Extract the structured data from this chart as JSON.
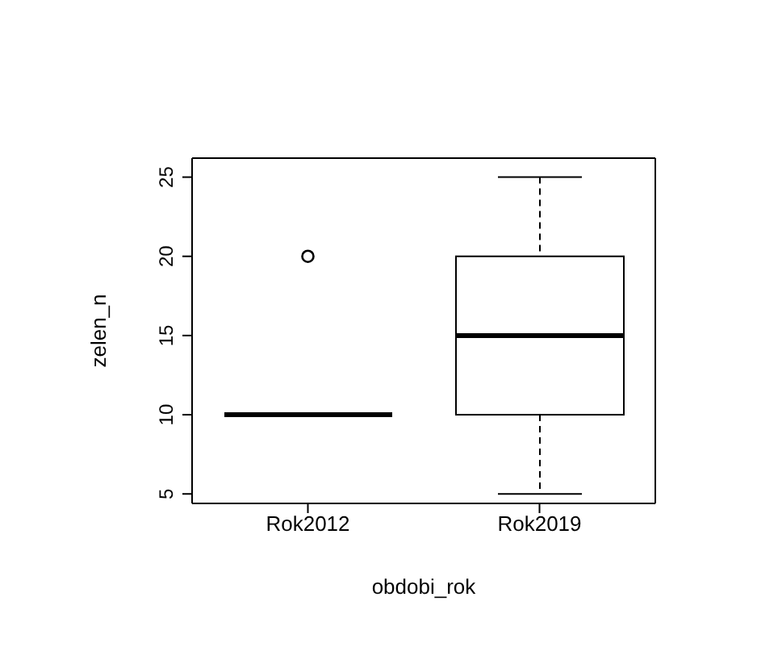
{
  "chart_data": {
    "type": "box",
    "xlabel": "obdobi_rok",
    "ylabel": "zelen_n",
    "categories": [
      "Rok2012",
      "Rok2019"
    ],
    "boxes": [
      {
        "low": 10,
        "q1": 10,
        "median": 10,
        "q3": 10,
        "high": 10,
        "outliers": [
          20
        ]
      },
      {
        "low": 5,
        "q1": 10,
        "median": 15,
        "q3": 20,
        "high": 25
      }
    ],
    "color": "#000000",
    "ylim": [
      4.4,
      26.2
    ],
    "yticks": [
      5,
      10,
      15,
      20,
      25
    ]
  }
}
